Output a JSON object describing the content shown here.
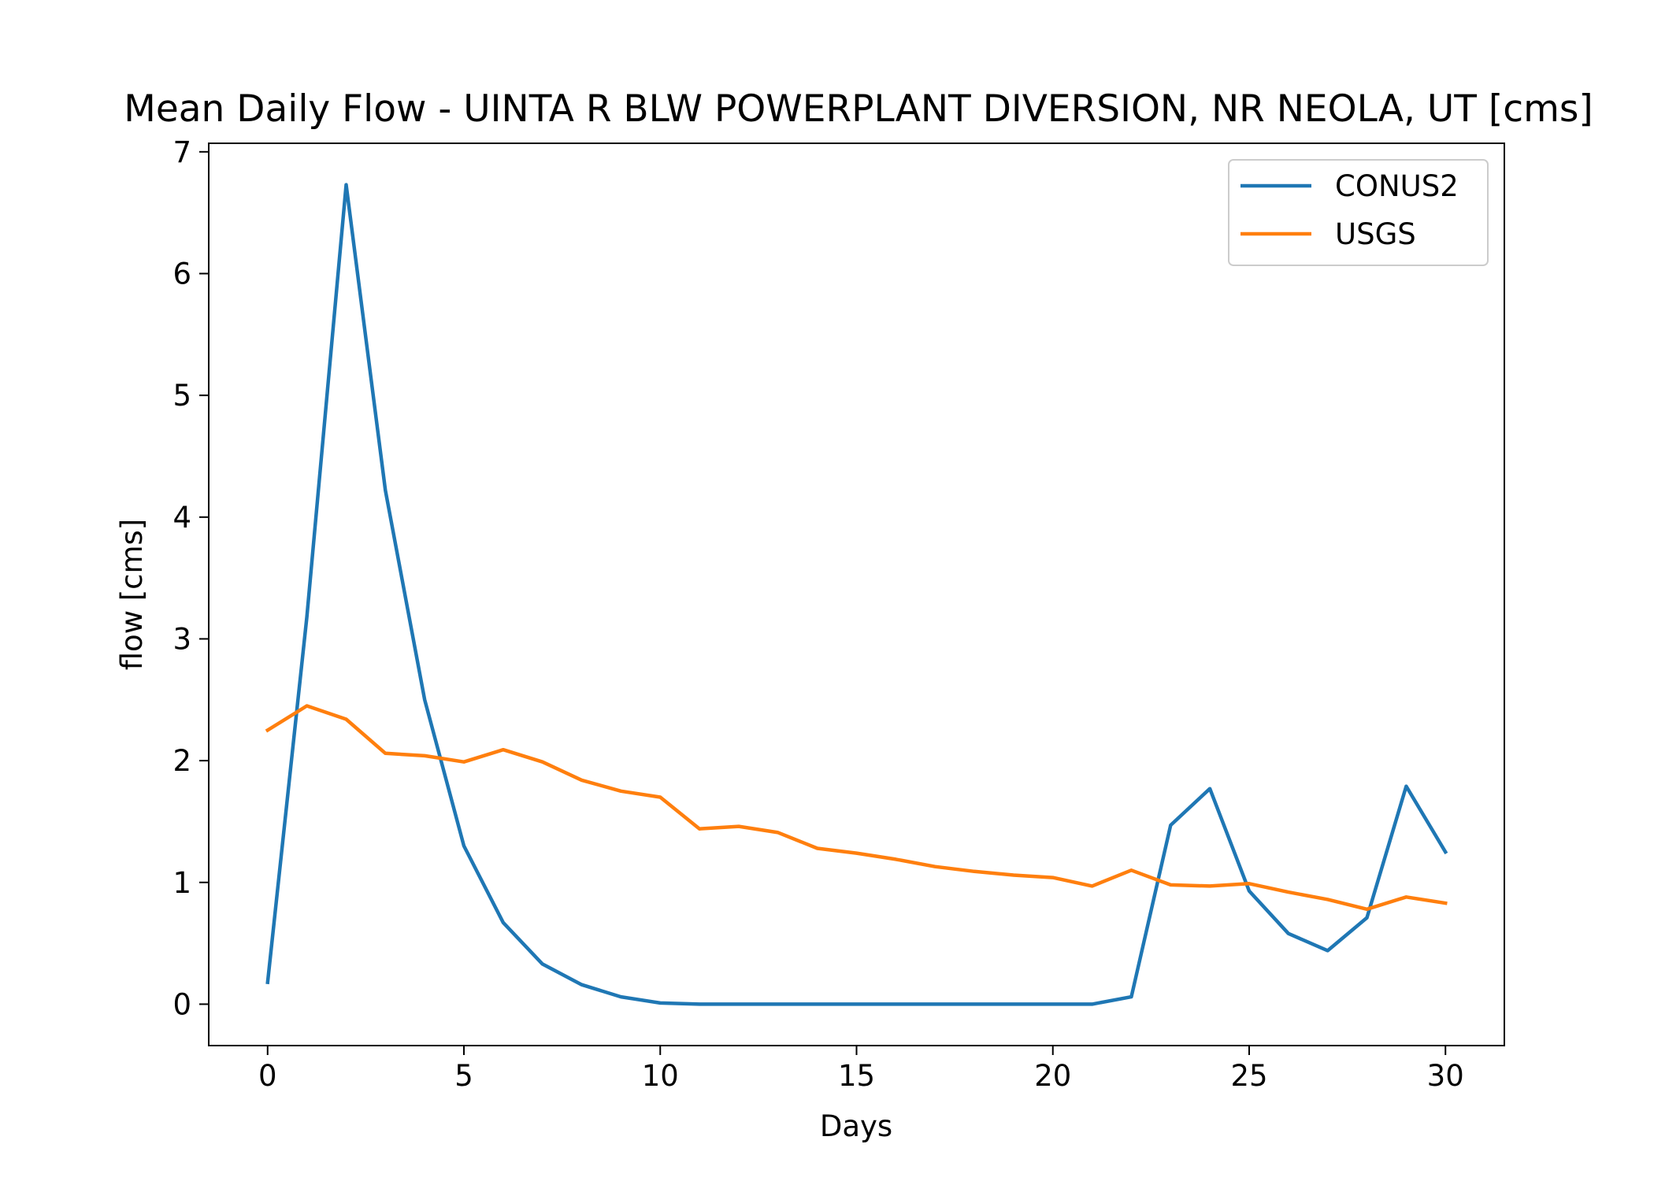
{
  "chart_data": {
    "type": "line",
    "title": "Mean Daily Flow - UINTA R BLW POWERPLANT DIVERSION, NR NEOLA, UT [cms]",
    "xlabel": "Days",
    "ylabel": "flow [cms]",
    "xlim": [
      -1.5,
      31.5
    ],
    "ylim": [
      -0.34,
      7.07
    ],
    "xticks": [
      0,
      5,
      10,
      15,
      20,
      25,
      30
    ],
    "yticks": [
      0,
      1,
      2,
      3,
      4,
      5,
      6,
      7
    ],
    "grid": false,
    "legend_position": "top-right",
    "x": [
      0,
      1,
      2,
      3,
      4,
      5,
      6,
      7,
      8,
      9,
      10,
      11,
      12,
      13,
      14,
      15,
      16,
      17,
      18,
      19,
      20,
      21,
      22,
      23,
      24,
      25,
      26,
      27,
      28,
      29,
      30
    ],
    "series": [
      {
        "name": "CONUS2",
        "color": "#1f77b4",
        "values": [
          0.18,
          3.18,
          6.73,
          4.22,
          2.5,
          1.3,
          0.67,
          0.33,
          0.16,
          0.06,
          0.01,
          0.0,
          0.0,
          0.0,
          0.0,
          0.0,
          0.0,
          0.0,
          0.0,
          0.0,
          0.0,
          0.0,
          0.06,
          1.47,
          1.77,
          0.93,
          0.58,
          0.44,
          0.71,
          1.79,
          1.25
        ]
      },
      {
        "name": "USGS",
        "color": "#ff7f0e",
        "values": [
          2.25,
          2.45,
          2.34,
          2.06,
          2.04,
          1.99,
          2.09,
          1.99,
          1.84,
          1.75,
          1.7,
          1.44,
          1.46,
          1.41,
          1.28,
          1.24,
          1.19,
          1.13,
          1.09,
          1.06,
          1.04,
          0.97,
          1.1,
          0.98,
          0.97,
          0.99,
          0.92,
          0.86,
          0.78,
          0.88,
          0.83
        ]
      }
    ]
  }
}
